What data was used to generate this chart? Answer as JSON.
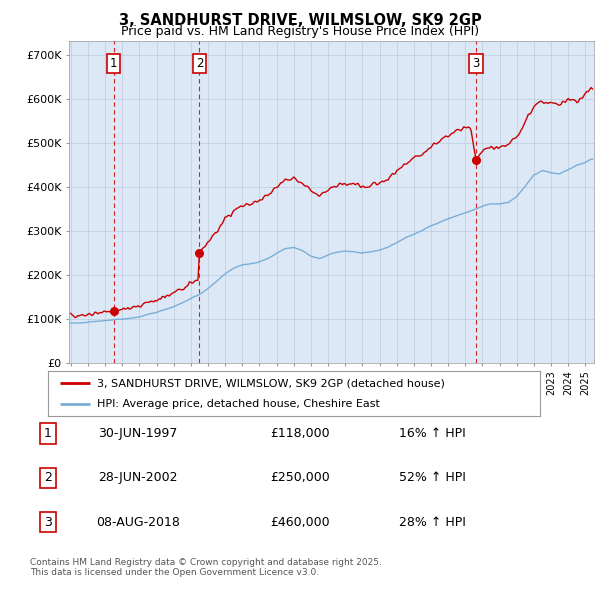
{
  "title": "3, SANDHURST DRIVE, WILMSLOW, SK9 2GP",
  "subtitle": "Price paid vs. HM Land Registry's House Price Index (HPI)",
  "legend_line1": "3, SANDHURST DRIVE, WILMSLOW, SK9 2GP (detached house)",
  "legend_line2": "HPI: Average price, detached house, Cheshire East",
  "footnote": "Contains HM Land Registry data © Crown copyright and database right 2025.\nThis data is licensed under the Open Government Licence v3.0.",
  "sales": [
    {
      "label": "1",
      "date": "30-JUN-1997",
      "price": 118000,
      "hpi_pct": "16% ↑ HPI",
      "year": 1997.5
    },
    {
      "label": "2",
      "date": "28-JUN-2002",
      "price": 250000,
      "hpi_pct": "52% ↑ HPI",
      "year": 2002.5
    },
    {
      "label": "3",
      "date": "08-AUG-2018",
      "price": 460000,
      "hpi_pct": "28% ↑ HPI",
      "year": 2018.622
    }
  ],
  "ylim": [
    0,
    730000
  ],
  "xlim_start": 1994.9,
  "xlim_end": 2025.5,
  "red_color": "#cc0000",
  "blue_color": "#7aaed6",
  "bg_color": "#dce8f5",
  "grid_color": "#bbccdd",
  "annotation_box_color": "#cc0000",
  "white": "#ffffff",
  "light_gray_border": "#aaaaaa"
}
